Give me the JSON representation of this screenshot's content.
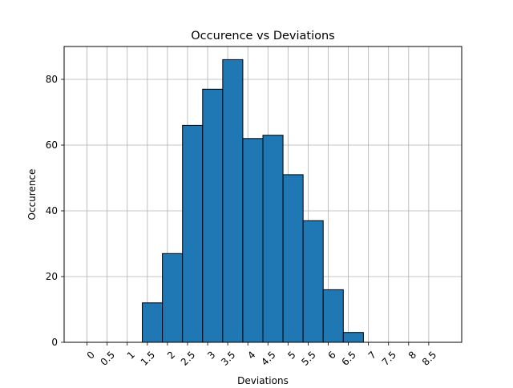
{
  "chart_data": {
    "type": "bar",
    "title": "Occurence vs Deviations",
    "xlabel": "Deviations",
    "ylabel": "Occurence",
    "x_tick_labels": [
      "0",
      "0.5",
      "1",
      "1.5",
      "2",
      "2.5",
      "3",
      "3.5",
      "4",
      "4.5",
      "5",
      "5.5",
      "6",
      "6.5",
      "7",
      "7.5",
      "8",
      "8.5"
    ],
    "x_ticks": [
      0,
      0.5,
      1,
      1.5,
      2,
      2.5,
      3,
      3.5,
      4,
      4.5,
      5,
      5.5,
      6,
      6.5,
      7,
      7.5,
      8,
      8.5
    ],
    "y_ticks": [
      0,
      20,
      40,
      60,
      80
    ],
    "y_tick_labels": [
      "0",
      "20",
      "40",
      "60",
      "80"
    ],
    "bin_edges": [
      -0.125,
      0.375,
      0.875,
      1.375,
      1.875,
      2.375,
      2.875,
      3.375,
      3.875,
      4.375,
      4.875,
      5.375,
      5.875,
      6.375,
      6.875,
      7.375,
      7.875,
      8.375,
      8.875
    ],
    "values": [
      0,
      0,
      0,
      12,
      27,
      66,
      77,
      86,
      62,
      63,
      51,
      37,
      16,
      3,
      0,
      0,
      0,
      0
    ],
    "xlim": [
      -0.57,
      9.32
    ],
    "ylim": [
      0,
      90
    ],
    "grid": true,
    "bar_color": "#1f77b4",
    "edge_color": "#000000"
  }
}
